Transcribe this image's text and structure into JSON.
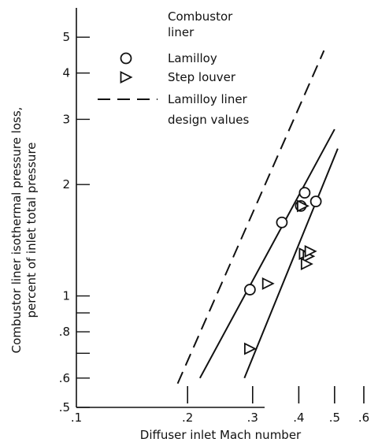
{
  "chart_data": {
    "type": "scatter",
    "x_scale": "log",
    "y_scale": "log",
    "xlim": [
      0.1,
      0.6
    ],
    "ylim": [
      0.5,
      6.0
    ],
    "xlabel": "Diffuser inlet Mach number",
    "ylabel_lines": [
      "Combustor liner isothermal pressure loss,",
      "percent of inlet total pressure"
    ],
    "x_ticks": [
      {
        "value": 0.1,
        "label": ".1"
      },
      {
        "value": 0.2,
        "label": ".2"
      },
      {
        "value": 0.3,
        "label": ".3"
      },
      {
        "value": 0.4,
        "label": ".4"
      },
      {
        "value": 0.5,
        "label": ".5"
      },
      {
        "value": 0.6,
        "label": ".6"
      }
    ],
    "y_ticks": [
      {
        "value": 0.5,
        "label": ".5"
      },
      {
        "value": 0.6,
        "label": ".6"
      },
      {
        "value": 0.7,
        "label": ""
      },
      {
        "value": 0.8,
        "label": ".8"
      },
      {
        "value": 0.9,
        "label": ""
      },
      {
        "value": 1,
        "label": "1"
      },
      {
        "value": 2,
        "label": "2"
      },
      {
        "value": 3,
        "label": "3"
      },
      {
        "value": 4,
        "label": "4"
      },
      {
        "value": 5,
        "label": "5"
      }
    ],
    "legend": {
      "title_lines": [
        "Combustor",
        "liner"
      ],
      "entries": [
        {
          "marker": "circle",
          "label_lines": [
            "Lamilloy"
          ]
        },
        {
          "marker": "triangle-right",
          "label_lines": [
            "Step louver"
          ]
        },
        {
          "marker": "dashed-line",
          "label_lines": [
            "Lamilloy liner",
            "design values"
          ]
        }
      ]
    },
    "series": [
      {
        "marker": "circle",
        "points": [
          {
            "x": 0.295,
            "y": 1.04
          },
          {
            "x": 0.36,
            "y": 1.58
          },
          {
            "x": 0.405,
            "y": 1.75
          },
          {
            "x": 0.415,
            "y": 1.9
          },
          {
            "x": 0.445,
            "y": 1.8
          }
        ],
        "fit_line": [
          [
            0.216,
            0.6
          ],
          [
            0.5,
            2.82
          ]
        ]
      },
      {
        "marker": "triangle-right",
        "points": [
          {
            "x": 0.295,
            "y": 0.72
          },
          {
            "x": 0.33,
            "y": 1.08
          },
          {
            "x": 0.415,
            "y": 1.3
          },
          {
            "x": 0.425,
            "y": 1.28
          },
          {
            "x": 0.43,
            "y": 1.32
          },
          {
            "x": 0.42,
            "y": 1.22
          },
          {
            "x": 0.41,
            "y": 1.75
          }
        ],
        "fit_line": [
          [
            0.285,
            0.6
          ],
          [
            0.51,
            2.5
          ]
        ]
      },
      {
        "style": "dashed",
        "fit_line": [
          [
            0.188,
            0.58
          ],
          [
            0.468,
            4.6
          ]
        ]
      }
    ]
  }
}
